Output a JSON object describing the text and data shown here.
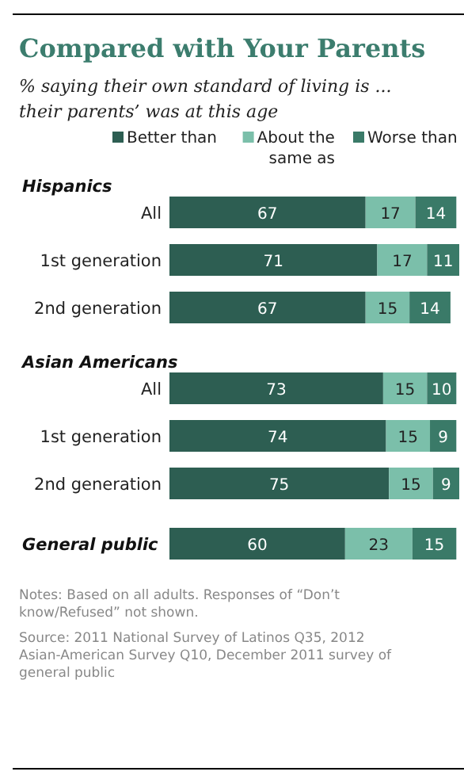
{
  "chart_data": [
    {
      "type": "bar",
      "orientation": "horizontal",
      "stacked": true,
      "data_labels": true,
      "legend": "top",
      "title": "Compared with Your Parents",
      "subtitle": "% saying their own standard of living is ... their parents’ was at this age",
      "ylabel": "Hispanics",
      "categories": [
        "All",
        "1st generation",
        "2nd generation"
      ],
      "series": [
        {
          "name": "Better than",
          "color": "#2d5e52",
          "values": [
            67,
            71,
            67
          ]
        },
        {
          "name": "About the same as",
          "color": "#7bbfaa",
          "values": [
            17,
            17,
            15
          ]
        },
        {
          "name": "Worse than",
          "color": "#3a7a68",
          "values": [
            14,
            11,
            14
          ]
        }
      ]
    },
    {
      "type": "bar",
      "orientation": "horizontal",
      "stacked": true,
      "data_labels": true,
      "ylabel": "Asian Americans",
      "categories": [
        "All",
        "1st generation",
        "2nd generation"
      ],
      "series": [
        {
          "color": "#2d5e52",
          "values": [
            73,
            74,
            75
          ]
        },
        {
          "color": "#7bbfaa",
          "values": [
            15,
            15,
            15
          ]
        },
        {
          "color": "#3a7a68",
          "values": [
            10,
            9,
            9
          ]
        }
      ]
    },
    {
      "type": "bar",
      "orientation": "horizontal",
      "stacked": true,
      "data_labels": true,
      "ylabel": "General public",
      "categories": [
        null
      ],
      "series": [
        {
          "color": "#2d5e52",
          "values": [
            60
          ]
        },
        {
          "color": "#7bbfaa",
          "values": [
            23
          ]
        },
        {
          "color": "#3a7a68",
          "values": [
            15
          ]
        }
      ],
      "annotations": [
        "Notes: Based on all adults. Responses of “Don’t know/Refused” not shown.",
        "Source: 2011 National Survey of Latinos Q35, 2012 Asian-American Survey Q10, December 2011 survey of general public"
      ]
    }
  ]
}
